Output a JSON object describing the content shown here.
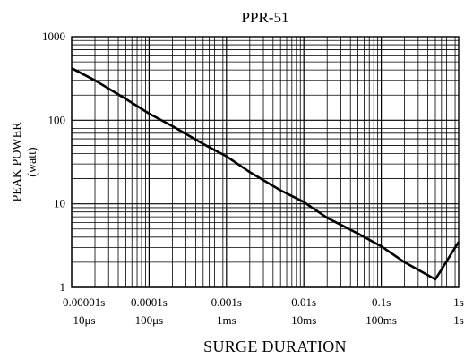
{
  "chart_data": {
    "type": "line",
    "title": "PPR-51",
    "xlabel": "SURGE DURATION",
    "ylabel": "PEAK POWER",
    "ylabel_unit": "(watt)",
    "x_scale": "log",
    "y_scale": "log",
    "xlim": [
      1e-05,
      1
    ],
    "ylim": [
      1,
      1000
    ],
    "grid": true,
    "x_ticks": [
      {
        "value": 1e-05,
        "label": "0.00001s",
        "sublabel": "10μs"
      },
      {
        "value": 0.0001,
        "label": "0.0001s",
        "sublabel": "100μs"
      },
      {
        "value": 0.001,
        "label": "0.001s",
        "sublabel": "1ms"
      },
      {
        "value": 0.01,
        "label": "0.01s",
        "sublabel": "10ms"
      },
      {
        "value": 0.1,
        "label": "0.1s",
        "sublabel": "100ms"
      },
      {
        "value": 1,
        "label": "1s",
        "sublabel": "1s"
      }
    ],
    "y_ticks": [
      {
        "value": 1,
        "label": "1"
      },
      {
        "value": 10,
        "label": "10"
      },
      {
        "value": 100,
        "label": "100"
      },
      {
        "value": 1000,
        "label": "1000"
      }
    ],
    "series": [
      {
        "x": [
          1e-05,
          2e-05,
          5e-05,
          0.0001,
          0.0002,
          0.0005,
          0.001,
          0.002,
          0.005,
          0.01,
          0.02,
          0.05,
          0.1,
          0.2,
          0.5,
          1
        ],
        "y": [
          420,
          300,
          180,
          120,
          85,
          52,
          37,
          24,
          14.5,
          10.5,
          6.8,
          4.4,
          3.1,
          2.0,
          1.25,
          3.5
        ],
        "color": "#000000"
      }
    ]
  }
}
